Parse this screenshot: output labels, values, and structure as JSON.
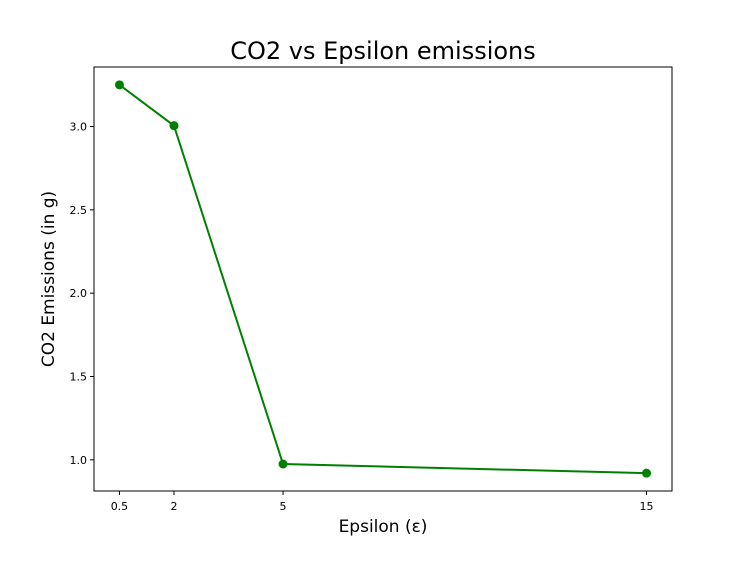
{
  "chart_data": {
    "type": "line",
    "title": "CO2 vs Epsilon emissions",
    "xlabel": "Epsilon (ε)",
    "ylabel": "CO2 Emissions (in g)",
    "x": [
      0.5,
      2,
      5,
      15
    ],
    "x_tick_labels": [
      "0.5",
      "2",
      "5",
      "15"
    ],
    "series": [
      {
        "values": [
          3.25,
          3.005,
          0.975,
          0.92
        ],
        "color": "#008000"
      }
    ],
    "y_ticks": [
      1.0,
      1.5,
      2.0,
      2.5,
      3.0
    ],
    "y_tick_labels": [
      "1.0",
      "1.5",
      "2.0",
      "2.5",
      "3.0"
    ],
    "xlim": [
      -0.2,
      15.7
    ],
    "ylim": [
      0.813,
      3.357
    ],
    "grid": false,
    "marker": "circle"
  }
}
